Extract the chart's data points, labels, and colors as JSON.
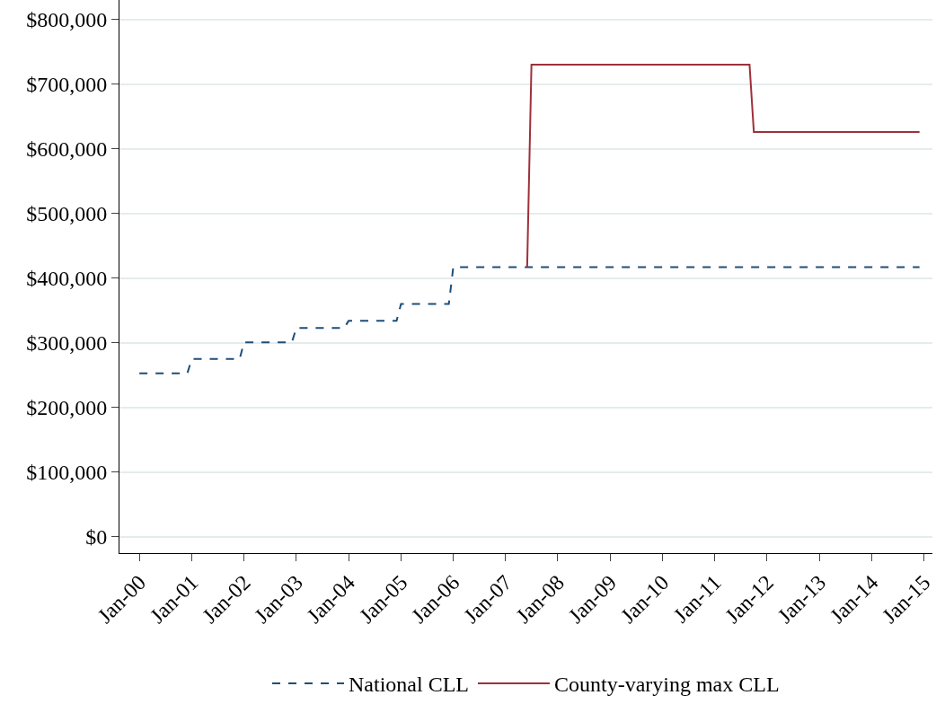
{
  "chart_data": {
    "type": "line",
    "series": [
      {
        "name": "National CLL",
        "color": "#1f4e79",
        "line_style": "dashed",
        "x": [
          "2000-01",
          "2000-12",
          "2001-01",
          "2001-12",
          "2002-01",
          "2002-12",
          "2003-01",
          "2003-12",
          "2004-01",
          "2004-12",
          "2005-01",
          "2005-12",
          "2006-01",
          "2014-12"
        ],
        "values": [
          253000,
          253000,
          275000,
          275000,
          301000,
          301000,
          323000,
          323000,
          334000,
          334000,
          360000,
          360000,
          417000,
          417000
        ]
      },
      {
        "name": "County-varying max CLL",
        "color": "#9e3039",
        "line_style": "solid",
        "x": [
          "2007-06",
          "2007-07",
          "2011-09",
          "2011-10",
          "2014-12"
        ],
        "values": [
          417000,
          730000,
          730000,
          626000,
          626000
        ]
      }
    ],
    "xlim": [
      "1999-08-15",
      "2015-03-01"
    ],
    "xticks": [
      {
        "value": "2000-01",
        "label": "Jan-00"
      },
      {
        "value": "2001-01",
        "label": "Jan-01"
      },
      {
        "value": "2002-01",
        "label": "Jan-02"
      },
      {
        "value": "2003-01",
        "label": "Jan-03"
      },
      {
        "value": "2004-01",
        "label": "Jan-04"
      },
      {
        "value": "2005-01",
        "label": "Jan-05"
      },
      {
        "value": "2006-01",
        "label": "Jan-06"
      },
      {
        "value": "2007-01",
        "label": "Jan-07"
      },
      {
        "value": "2008-01",
        "label": "Jan-08"
      },
      {
        "value": "2009-01",
        "label": "Jan-09"
      },
      {
        "value": "2010-01",
        "label": "Jan-10"
      },
      {
        "value": "2011-01",
        "label": "Jan-11"
      },
      {
        "value": "2012-01",
        "label": "Jan-12"
      },
      {
        "value": "2013-01",
        "label": "Jan-13"
      },
      {
        "value": "2014-01",
        "label": "Jan-14"
      },
      {
        "value": "2015-01",
        "label": "Jan-15"
      }
    ],
    "ylim": [
      -25000,
      830000
    ],
    "yticks": [
      {
        "value": 0,
        "label": "$0"
      },
      {
        "value": 100000,
        "label": "$100,000"
      },
      {
        "value": 200000,
        "label": "$200,000"
      },
      {
        "value": 300000,
        "label": "$300,000"
      },
      {
        "value": 400000,
        "label": "$400,000"
      },
      {
        "value": 500000,
        "label": "$500,000"
      },
      {
        "value": 600000,
        "label": "$600,000"
      },
      {
        "value": 700000,
        "label": "$700,000"
      },
      {
        "value": 800000,
        "label": "$800,000"
      }
    ],
    "grid": "y",
    "legend": "bottom",
    "marker": "none"
  }
}
